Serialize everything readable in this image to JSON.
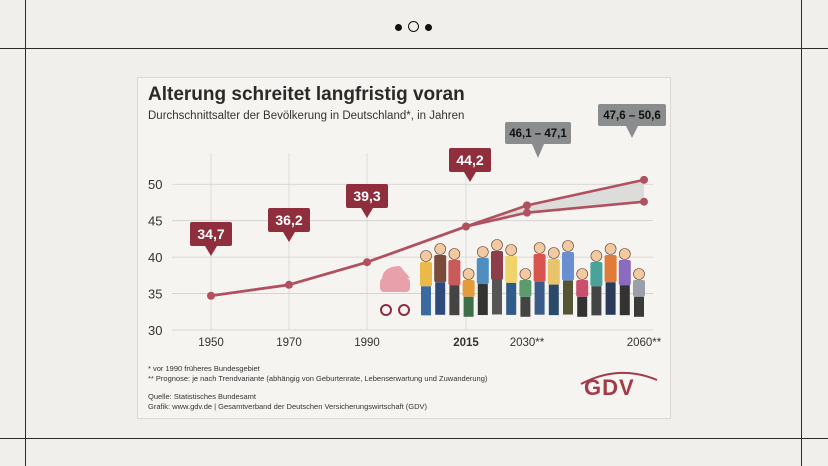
{
  "pager": {
    "dots": [
      "dot",
      "current",
      "dot"
    ]
  },
  "chart_data": {
    "type": "line",
    "title": "Alterung schreitet langfristig voran",
    "subtitle": "Durchschnittsalter der Bevölkerung in Deutschland*, in Jahren",
    "x": [
      "1950",
      "1970",
      "1990",
      "2015",
      "2030**",
      "2060**"
    ],
    "series": [
      {
        "values": [
          34.7,
          36.2,
          39.3,
          44.2,
          46.1,
          47.6
        ]
      },
      {
        "values": [
          34.7,
          36.2,
          39.3,
          44.2,
          47.1,
          50.6
        ]
      }
    ],
    "data_labels": [
      "34,7",
      "36,2",
      "39,3",
      "44,2",
      "46,1 – 47,1",
      "47,6 – 50,6"
    ],
    "yticks": [
      "30",
      "35",
      "40",
      "45",
      "50"
    ],
    "ylim": [
      30,
      52.5
    ],
    "grid": true,
    "colors": {
      "line": "#b1505e",
      "label_bg": "#8f2f3d",
      "projection_label_bg": "#8b8c8e",
      "range_fill": "#d6d6d6"
    }
  },
  "notes": {
    "note1": "* vor 1990 früheres Bundesgebiet",
    "note2": "** Prognose: je nach Trendvariante (abhängig von Geburtenrate, Lebenserwartung und Zuwanderung)",
    "source": "Quelle: Statistisches Bundesamt",
    "graphic": "Grafik: www.gdv.de | Gesamtverband der Deutschen Versicherungswirtschaft (GDV)"
  },
  "logo": {
    "text": "GDV"
  },
  "illustration": {
    "subject": "family-group-illustration",
    "figures": 16
  }
}
